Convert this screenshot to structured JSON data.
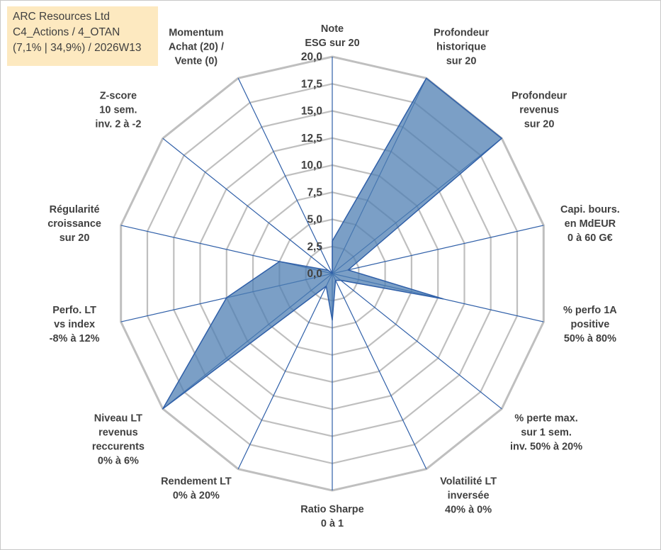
{
  "info_box": {
    "line1": "ARC Resources Ltd",
    "line2": "C4_Actions / 4_OTAN",
    "line3": "(7,1% | 34,9%) / 2026W13"
  },
  "colors": {
    "fill": "#4f7fb3",
    "fill_opacity": 0.75,
    "spoke": "#2f5fa8",
    "grid": "#bfbfbf",
    "text": "#404040",
    "info_bg": "#fde9c0"
  },
  "chart_data": {
    "type": "radar",
    "r_range": [
      0,
      20
    ],
    "r_step": 2.5,
    "tick_labels": [
      "0,0",
      "2,5",
      "5,0",
      "7,5",
      "10,0",
      "12,5",
      "15,0",
      "17,5",
      "20,0"
    ],
    "grid": true,
    "axes": [
      {
        "label": [
          "Note",
          "ESG sur 20"
        ],
        "value": 3.0
      },
      {
        "label": [
          "Profondeur",
          "historique",
          "sur 20"
        ],
        "value": 20.0
      },
      {
        "label": [
          "Profondeur",
          "revenus",
          "sur 20"
        ],
        "value": 20.0
      },
      {
        "label": [
          "Capi. bours.",
          "en MdEUR",
          "0 à 60 G€"
        ],
        "value": 1.5
      },
      {
        "label": [
          "% perfo 1A",
          "positive",
          "50% à 80%"
        ],
        "value": 10.5
      },
      {
        "label": [
          "% perte max.",
          "sur 1 sem.",
          "inv. 50% à 20%"
        ],
        "value": 1.0
      },
      {
        "label": [
          "Volatilité LT",
          "inversée",
          "40% à 0%"
        ],
        "value": 0.7
      },
      {
        "label": [
          "Ratio Sharpe",
          "0 à 1"
        ],
        "value": 4.3
      },
      {
        "label": [
          "Rendement LT",
          "0% à 20%"
        ],
        "value": 1.3
      },
      {
        "label": [
          "Niveau LT",
          "revenus",
          "reccurents",
          "0% à 6%"
        ],
        "value": 20.0
      },
      {
        "label": [
          "Perfo. LT",
          "vs index",
          "-8% à 12%"
        ],
        "value": 10.0
      },
      {
        "label": [
          "Régularité",
          "croissance",
          "sur 20"
        ],
        "value": 5.0
      },
      {
        "label": [
          "Z-score",
          "10 sem.",
          "inv. 2 à -2"
        ],
        "value": 0.5
      },
      {
        "label": [
          "Momentum",
          "Achat (20) /",
          "Vente (0)"
        ],
        "value": 0.0
      }
    ]
  }
}
